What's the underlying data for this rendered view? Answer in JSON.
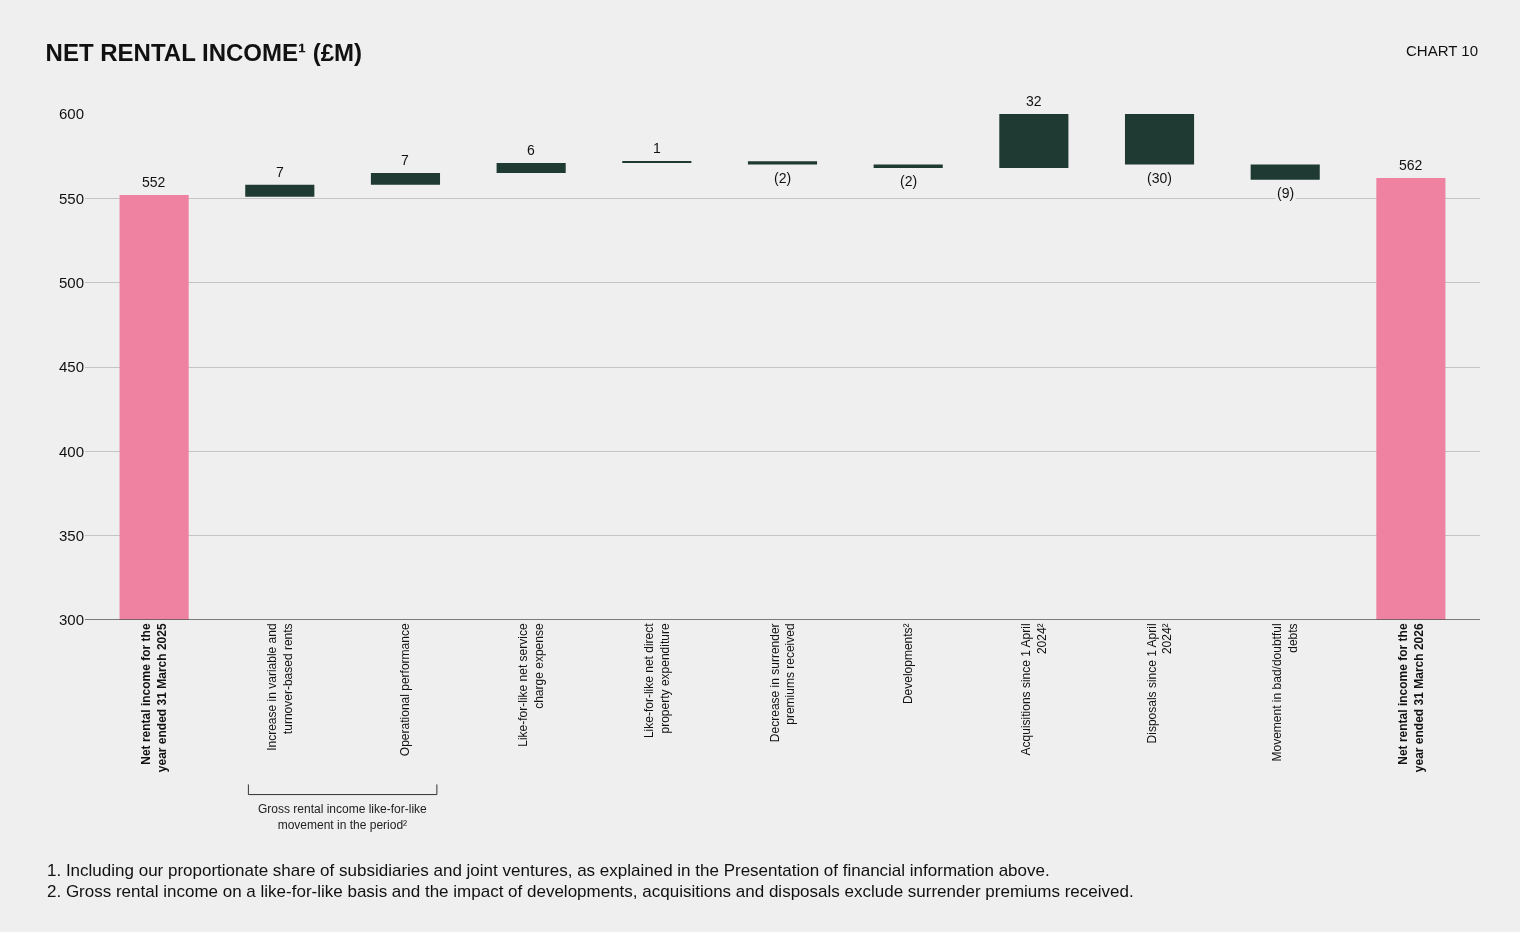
{
  "chart_data": {
    "type": "bar",
    "title": "NET RENTAL INCOME¹ (£M)",
    "categories": [
      "Net rental income for the year ended 31 March 2025",
      "Increase in variable and turnover-based rents",
      "Operational performance",
      "Like-for-like net service charge expense",
      "Like-for-like net direct property expenditure",
      "Decrease in surrender premiums received",
      "Developments²",
      "Acquisitions since 1 April 2024²",
      "Disposals since 1 April 2024²",
      "Movement in bad/doubtful debts",
      "Net rental income for the year ended 31 March 2026"
    ],
    "values": [
      552,
      7,
      7,
      6,
      1,
      -2,
      -2,
      32,
      -30,
      -9,
      562
    ],
    "base": [
      null,
      551,
      558,
      565,
      571,
      572,
      570,
      568,
      600,
      570,
      null
    ],
    "colors": [
      "#ef82a0",
      "#1e3a32",
      "#1e3a32",
      "#1e3a32",
      "#1e3a32",
      "#1e3a32",
      "#1e3a32",
      "#1e3a32",
      "#1e3a32",
      "#1e3a32",
      "#ef82a0"
    ],
    "value_labels": [
      "552",
      "7",
      "7",
      "6",
      "1",
      "(2)",
      "(2)",
      "32",
      "(30)",
      "(9)",
      "562"
    ],
    "ylim": [
      300,
      600
    ],
    "yticks": [
      300,
      350,
      400,
      450,
      500,
      550,
      600
    ],
    "grid": "y",
    "legend": false,
    "annotations": [
      "CHART 10",
      {
        "text": "Gross rental income like-for-like movement in the period²"
      },
      "1. Including our proportionate share of subsidiaries and joint ventures, as explained in the Presentation of financial information above.",
      "2. Gross rental income on a like-for-like basis and the impact of developments, acquisitions and disposals exclude surrender premiums received."
    ]
  }
}
